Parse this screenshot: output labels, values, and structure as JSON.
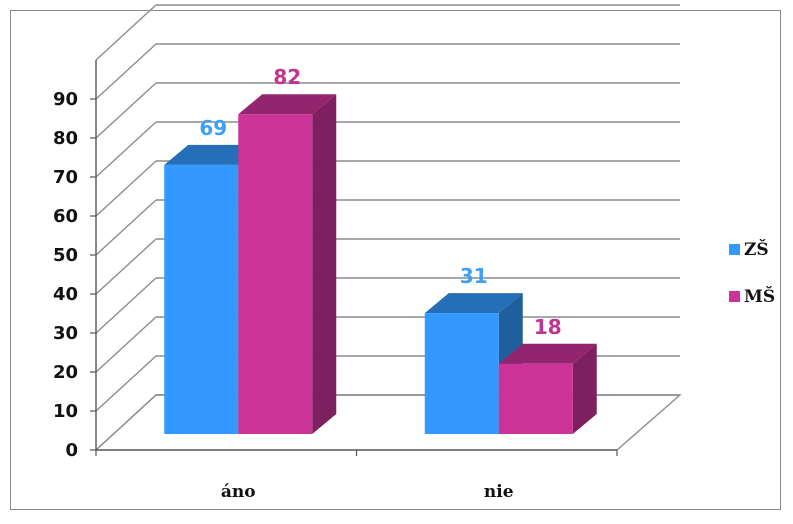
{
  "chart_data": {
    "type": "bar",
    "categories": [
      "áno",
      "nie"
    ],
    "series": [
      {
        "name": "ZŠ",
        "values": [
          69,
          31
        ],
        "color": "#3399FF",
        "label_color": "#3FA0F2"
      },
      {
        "name": "MŠ",
        "values": [
          82,
          18
        ],
        "color": "#CC3399",
        "label_color": "#C0338F"
      }
    ],
    "y_ticks": [
      "0",
      "10",
      "20",
      "30",
      "40",
      "50",
      "60",
      "70",
      "80",
      "90"
    ],
    "ylim": [
      0,
      100
    ],
    "grid": true,
    "legend_position": "right",
    "style_3d": true
  }
}
